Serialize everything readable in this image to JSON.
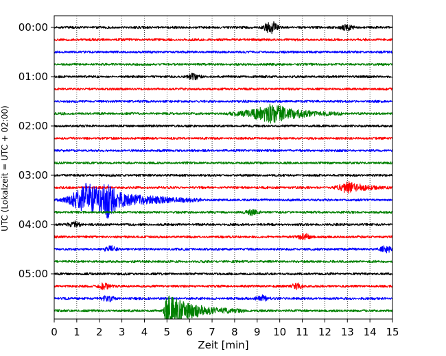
{
  "chart_data": {
    "type": "line",
    "subtype": "helicorder",
    "title": "",
    "xlabel": "Zeit  [min]",
    "ylabel": "UTC (Lokalzeit = UTC + 02:00)",
    "xlim": [
      0,
      15
    ],
    "x_ticks": [
      "0",
      "1",
      "2",
      "3",
      "4",
      "5",
      "6",
      "7",
      "8",
      "9",
      "10",
      "11",
      "12",
      "13",
      "14",
      "15"
    ],
    "y_ticks": [
      "00:00",
      "01:00",
      "02:00",
      "03:00",
      "04:00",
      "05:00"
    ],
    "minutes_per_trace": 15,
    "trace_count": 24,
    "grid": "vertical dotted at each minute",
    "trace_colors": [
      "#000000",
      "#ff0000",
      "#0000ff",
      "#008000"
    ],
    "traces": [
      {
        "start": "00:00",
        "color": "#000000",
        "events": [
          {
            "center_min": 9.6,
            "amplitude": "moderate"
          },
          {
            "center_min": 13.0,
            "amplitude": "small"
          }
        ]
      },
      {
        "start": "00:15",
        "color": "#ff0000",
        "events": []
      },
      {
        "start": "00:30",
        "color": "#0000ff",
        "events": []
      },
      {
        "start": "00:45",
        "color": "#008000",
        "events": []
      },
      {
        "start": "01:00",
        "color": "#000000",
        "events": [
          {
            "center_min": 6.2,
            "amplitude": "small"
          }
        ]
      },
      {
        "start": "01:15",
        "color": "#ff0000",
        "events": []
      },
      {
        "start": "01:30",
        "color": "#0000ff",
        "events": []
      },
      {
        "start": "01:45",
        "color": "#008000",
        "events": [
          {
            "onset_min": 7.3,
            "peak_min": 9.7,
            "end_min": 12.8,
            "amplitude": "large"
          }
        ]
      },
      {
        "start": "02:00",
        "color": "#000000",
        "events": []
      },
      {
        "start": "02:15",
        "color": "#ff0000",
        "events": []
      },
      {
        "start": "02:30",
        "color": "#0000ff",
        "events": []
      },
      {
        "start": "02:45",
        "color": "#008000",
        "events": []
      },
      {
        "start": "03:00",
        "color": "#000000",
        "events": []
      },
      {
        "start": "03:15",
        "color": "#ff0000",
        "events": [
          {
            "onset_min": 12.2,
            "peak_min": 13.0,
            "end_min": 15.0,
            "amplitude": "moderate"
          }
        ]
      },
      {
        "start": "03:30",
        "color": "#0000ff",
        "events": [
          {
            "onset_min": 0.0,
            "peak_min": 1.4,
            "end_min": 6.5,
            "amplitude": "very large"
          },
          {
            "center_min": 2.4,
            "amplitude": "large"
          }
        ]
      },
      {
        "start": "03:45",
        "color": "#008000",
        "events": [
          {
            "center_min": 8.8,
            "amplitude": "small"
          }
        ]
      },
      {
        "start": "04:00",
        "color": "#000000",
        "events": [
          {
            "center_min": 0.9,
            "amplitude": "small"
          }
        ]
      },
      {
        "start": "04:15",
        "color": "#ff0000",
        "events": [
          {
            "center_min": 11.1,
            "amplitude": "small"
          }
        ]
      },
      {
        "start": "04:30",
        "color": "#0000ff",
        "events": [
          {
            "center_min": 2.5,
            "amplitude": "small"
          },
          {
            "center_min": 14.7,
            "amplitude": "small"
          }
        ]
      },
      {
        "start": "04:45",
        "color": "#008000",
        "events": []
      },
      {
        "start": "05:00",
        "color": "#000000",
        "events": []
      },
      {
        "start": "05:15",
        "color": "#ff0000",
        "events": [
          {
            "center_min": 2.2,
            "amplitude": "small"
          },
          {
            "center_min": 10.8,
            "amplitude": "small"
          }
        ]
      },
      {
        "start": "05:30",
        "color": "#0000ff",
        "events": [
          {
            "center_min": 2.4,
            "amplitude": "small"
          },
          {
            "center_min": 9.2,
            "amplitude": "small"
          }
        ]
      },
      {
        "start": "05:45",
        "color": "#008000",
        "events": [
          {
            "onset_min": 4.8,
            "peak_min": 4.95,
            "end_min": 8.5,
            "amplitude": "very large"
          }
        ]
      }
    ]
  }
}
